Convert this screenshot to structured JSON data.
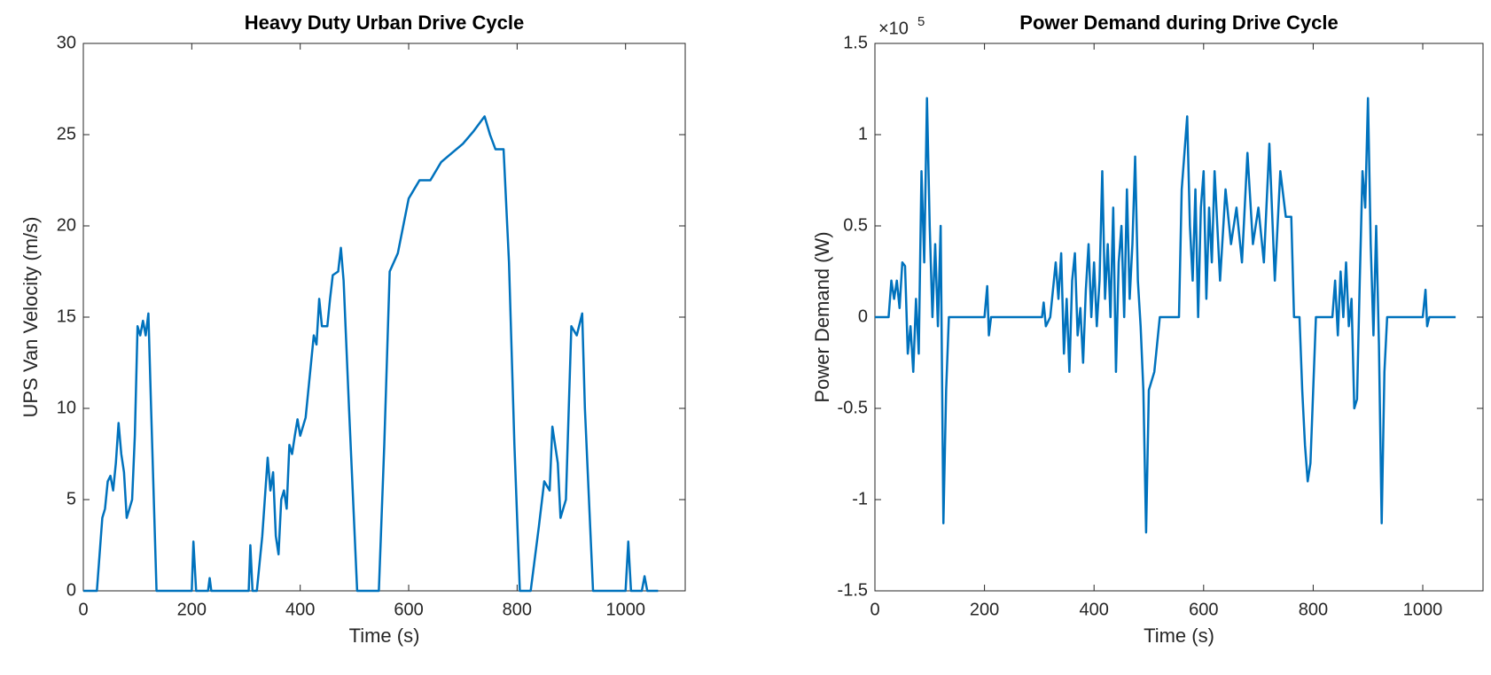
{
  "chart_data": [
    {
      "type": "line",
      "title": "Heavy Duty Urban Drive Cycle",
      "xlabel": "Time (s)",
      "ylabel": "UPS Van Velocity (m/s)",
      "xlim": [
        0,
        1110
      ],
      "xticks": [
        0,
        200,
        400,
        600,
        800,
        1000
      ],
      "ylim": [
        0,
        30
      ],
      "yticks": [
        0,
        5,
        10,
        15,
        20,
        25,
        30
      ],
      "x": [
        0,
        25,
        30,
        35,
        40,
        45,
        50,
        55,
        60,
        65,
        70,
        75,
        80,
        85,
        90,
        95,
        100,
        105,
        110,
        115,
        120,
        125,
        135,
        200,
        203,
        208,
        230,
        233,
        236,
        305,
        308,
        312,
        320,
        330,
        340,
        345,
        350,
        355,
        360,
        365,
        370,
        375,
        380,
        385,
        390,
        395,
        400,
        410,
        420,
        425,
        430,
        435,
        440,
        450,
        455,
        460,
        470,
        475,
        480,
        490,
        505,
        545,
        555,
        565,
        580,
        590,
        600,
        610,
        620,
        640,
        660,
        680,
        700,
        720,
        740,
        750,
        760,
        775,
        785,
        795,
        805,
        825,
        840,
        850,
        860,
        865,
        870,
        875,
        880,
        890,
        900,
        910,
        920,
        925,
        940,
        1000,
        1005,
        1010,
        1030,
        1035,
        1040,
        1060
      ],
      "series": [
        {
          "color": "#0072bd",
          "values": [
            0,
            0,
            2,
            4,
            4.5,
            6,
            6.3,
            5.5,
            7,
            9.2,
            7.5,
            6.5,
            4,
            4.5,
            5,
            8.5,
            14.5,
            14,
            14.8,
            14,
            15.2,
            10,
            0,
            0,
            2.7,
            0,
            0,
            0.7,
            0,
            0,
            2.5,
            0,
            0,
            3,
            7.3,
            5.5,
            6.5,
            3,
            2,
            5,
            5.5,
            4.5,
            8,
            7.5,
            8.5,
            9.4,
            8.5,
            9.5,
            12.5,
            14,
            13.5,
            16,
            14.5,
            14.5,
            16,
            17.3,
            17.5,
            18.8,
            17,
            10,
            0,
            0,
            8,
            17.5,
            18.5,
            20,
            21.5,
            22,
            22.5,
            22.5,
            23.5,
            24,
            24.5,
            25.2,
            26,
            25,
            24.2,
            24.2,
            18,
            8,
            0,
            0,
            3.5,
            6,
            5.5,
            9,
            8,
            7,
            4,
            5,
            14.5,
            14,
            15.2,
            10,
            0,
            0,
            2.7,
            0,
            0,
            0.8,
            0,
            0
          ]
        }
      ]
    },
    {
      "type": "line",
      "title": "Power Demand during Drive Cycle",
      "xlabel": "Time (s)",
      "ylabel": "Power Demand (W)",
      "y_multiplier": {
        "base": "×10",
        "exponent": "5"
      },
      "xlim": [
        0,
        1110
      ],
      "xticks": [
        0,
        200,
        400,
        600,
        800,
        1000
      ],
      "ylim": [
        -150000,
        150000
      ],
      "yticks": [
        {
          "value": -150000,
          "label": "-1.5"
        },
        {
          "value": -100000,
          "label": "-1"
        },
        {
          "value": -50000,
          "label": "-0.5"
        },
        0,
        {
          "value": 50000,
          "label": "0.5"
        },
        {
          "value": 100000,
          "label": "1"
        },
        {
          "value": 150000,
          "label": "1.5"
        }
      ],
      "x": [
        0,
        25,
        30,
        35,
        40,
        45,
        50,
        55,
        60,
        65,
        70,
        75,
        80,
        85,
        90,
        95,
        100,
        105,
        110,
        115,
        120,
        125,
        130,
        135,
        200,
        205,
        208,
        212,
        305,
        308,
        312,
        320,
        330,
        335,
        340,
        345,
        350,
        355,
        360,
        365,
        370,
        375,
        380,
        385,
        390,
        395,
        400,
        405,
        410,
        415,
        420,
        425,
        430,
        435,
        440,
        445,
        450,
        455,
        460,
        465,
        470,
        475,
        480,
        485,
        490,
        495,
        500,
        510,
        520,
        555,
        560,
        565,
        570,
        575,
        580,
        585,
        590,
        595,
        600,
        605,
        610,
        615,
        620,
        625,
        630,
        640,
        650,
        660,
        670,
        680,
        690,
        700,
        710,
        720,
        730,
        740,
        750,
        760,
        765,
        775,
        780,
        785,
        790,
        795,
        800,
        805,
        835,
        840,
        845,
        850,
        855,
        860,
        865,
        870,
        875,
        880,
        885,
        890,
        895,
        900,
        905,
        910,
        915,
        920,
        925,
        930,
        935,
        1000,
        1005,
        1008,
        1012,
        1060
      ],
      "series": [
        {
          "color": "#0072bd",
          "values": [
            0,
            0,
            20000,
            10000,
            20000,
            5000,
            30000,
            28000,
            -20000,
            -5000,
            -30000,
            10000,
            -20000,
            80000,
            30000,
            120000,
            50000,
            0,
            40000,
            -5000,
            50000,
            -113000,
            -40000,
            0,
            0,
            17000,
            -10000,
            0,
            0,
            8000,
            -5000,
            0,
            30000,
            10000,
            35000,
            -20000,
            10000,
            -30000,
            20000,
            35000,
            -10000,
            5000,
            -25000,
            15000,
            40000,
            0,
            30000,
            -5000,
            20000,
            80000,
            10000,
            40000,
            0,
            60000,
            -30000,
            30000,
            50000,
            0,
            70000,
            10000,
            40000,
            88000,
            20000,
            -5000,
            -40000,
            -118000,
            -40000,
            -30000,
            0,
            0,
            70000,
            90000,
            110000,
            50000,
            20000,
            70000,
            0,
            60000,
            80000,
            10000,
            60000,
            30000,
            80000,
            50000,
            20000,
            70000,
            40000,
            60000,
            30000,
            90000,
            40000,
            60000,
            30000,
            95000,
            20000,
            80000,
            55000,
            55000,
            0,
            0,
            -40000,
            -70000,
            -90000,
            -80000,
            -40000,
            0,
            0,
            20000,
            -10000,
            25000,
            0,
            30000,
            -5000,
            10000,
            -50000,
            -45000,
            20000,
            80000,
            60000,
            120000,
            40000,
            -10000,
            50000,
            -15000,
            -113000,
            -30000,
            0,
            0,
            15000,
            -5000,
            0,
            0
          ]
        }
      ]
    }
  ]
}
